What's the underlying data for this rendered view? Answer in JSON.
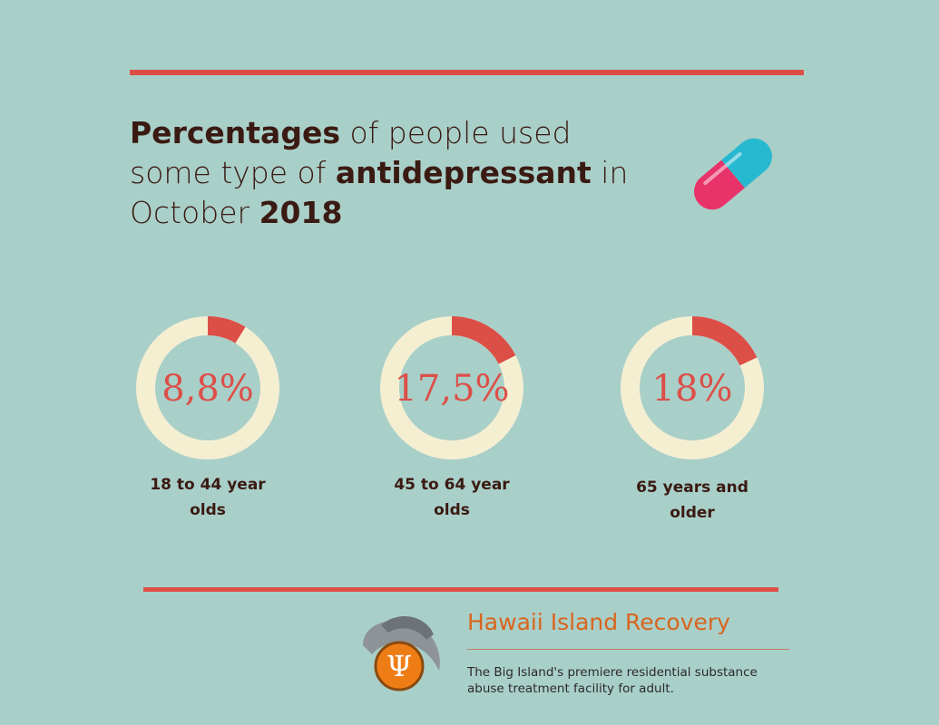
{
  "title_runs": [
    {
      "text": "Percentages",
      "bold": true
    },
    {
      "text": " of people used some type of ",
      "bold": false
    },
    {
      "text": "antidepressant",
      "bold": true
    },
    {
      "text": " in October ",
      "bold": false
    },
    {
      "text": "2018",
      "bold": true
    }
  ],
  "chart_data": {
    "type": "donut",
    "categories": [
      "18 to 44 year olds",
      "45 to 64 year olds",
      "65 years and older"
    ],
    "values": [
      8.8,
      17.5,
      18
    ],
    "value_labels": [
      "8,8%",
      "17,5%",
      "18%"
    ],
    "color": "#dc4f47",
    "track_color": "#f5efd2"
  },
  "footer": {
    "brand": "Hawaii Island Recovery",
    "logo_symbol": "Ψ",
    "tagline": "The Big Island's premiere residential substance abuse treatment facility for adult."
  }
}
